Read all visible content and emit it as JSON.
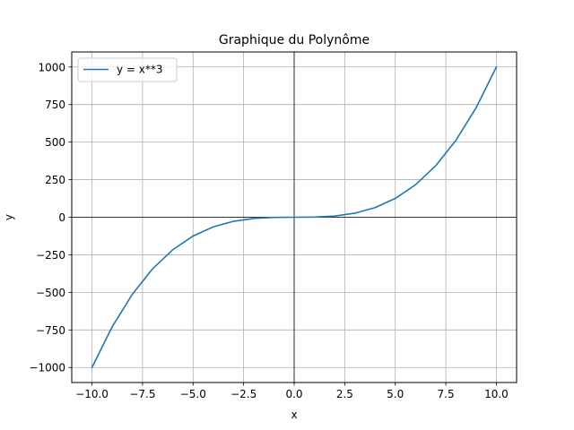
{
  "chart_data": {
    "type": "line",
    "title": "Graphique du Polynôme",
    "xlabel": "x",
    "ylabel": "y",
    "xlim": [
      -11,
      11
    ],
    "ylim": [
      -1100,
      1100
    ],
    "xticks": [
      -10.0,
      -7.5,
      -5.0,
      -2.5,
      0.0,
      2.5,
      5.0,
      7.5,
      10.0
    ],
    "xtick_labels": [
      "−10.0",
      "−7.5",
      "−5.0",
      "−2.5",
      "0.0",
      "2.5",
      "5.0",
      "7.5",
      "10.0"
    ],
    "yticks": [
      -1000,
      -750,
      -500,
      -250,
      0,
      250,
      500,
      750,
      1000
    ],
    "ytick_labels": [
      "−1000",
      "−750",
      "−500",
      "−250",
      "0",
      "250",
      "500",
      "750",
      "1000"
    ],
    "grid": true,
    "legend_position": "top-left",
    "reference_lines": [
      "x=0",
      "y=0"
    ],
    "series": [
      {
        "name": "y = x**3",
        "color": "#1f77b4",
        "x": [
          -10,
          -9,
          -8,
          -7,
          -6,
          -5,
          -4,
          -3,
          -2,
          -1,
          0,
          1,
          2,
          3,
          4,
          5,
          6,
          7,
          8,
          9,
          10
        ],
        "y": [
          -1000,
          -729,
          -512,
          -343,
          -216,
          -125,
          -64,
          -27,
          -8,
          -1,
          0,
          1,
          8,
          27,
          64,
          125,
          216,
          343,
          512,
          729,
          1000
        ]
      }
    ]
  }
}
